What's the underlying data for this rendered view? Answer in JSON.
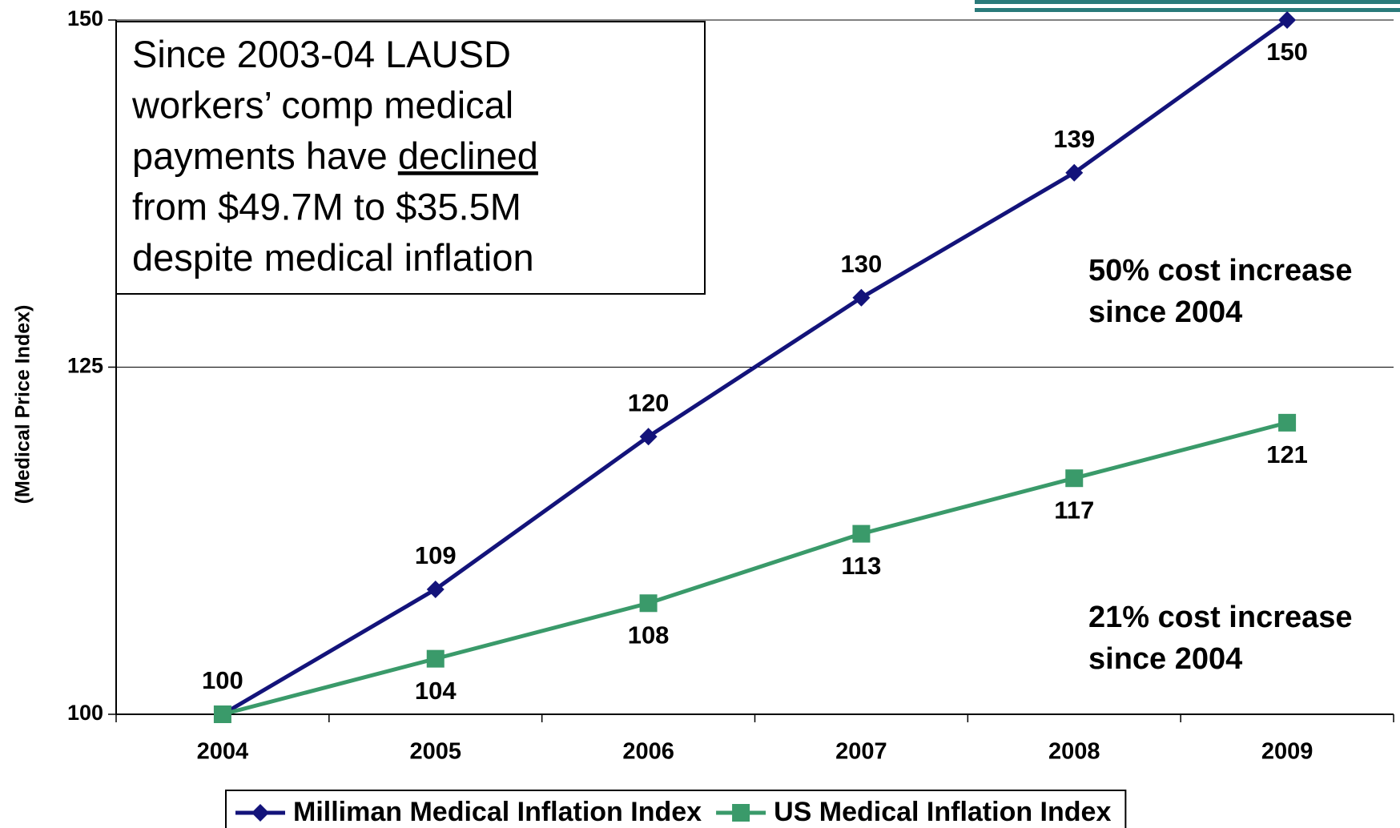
{
  "chart_data": {
    "type": "line",
    "y_axis_label": "(Medical Price Index)",
    "categories": [
      "2004",
      "2005",
      "2006",
      "2007",
      "2008",
      "2009"
    ],
    "series": [
      {
        "name": "Milliman Medical Inflation Index",
        "color": "#13137a",
        "marker": "diamond",
        "values": [
          100,
          109,
          120,
          130,
          139,
          150
        ]
      },
      {
        "name": "US Medical Inflation Index",
        "color": "#3a9a6a",
        "marker": "square",
        "values": [
          100,
          104,
          108,
          113,
          117,
          121
        ]
      }
    ],
    "ylim": [
      100,
      150
    ],
    "yticks": [
      100,
      125,
      150
    ],
    "grid": true,
    "legend": "bottom",
    "text_box": [
      [
        {
          "text": "Since 2003-04 LAUSD"
        }
      ],
      [
        {
          "text": "workers’ comp medical"
        }
      ],
      [
        {
          "text": "payments have "
        },
        {
          "text": "declined",
          "underline": true
        }
      ],
      [
        {
          "text": "from $49.7M to $35.5M"
        }
      ],
      [
        {
          "text": "despite medical inflation"
        }
      ]
    ],
    "annotations": [
      {
        "lines": [
          "50% cost increase",
          "since 2004"
        ],
        "color": "#3a3a9e"
      },
      {
        "lines": [
          "21% cost increase",
          "since 2004"
        ],
        "color": "#3a9a6a"
      }
    ]
  }
}
